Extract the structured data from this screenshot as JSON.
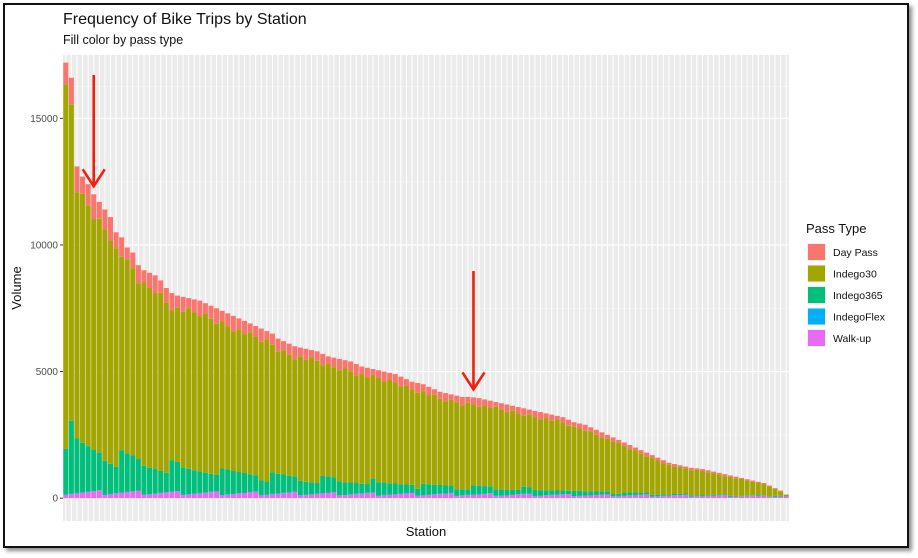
{
  "chart_data": {
    "type": "bar",
    "stacked": true,
    "title": "Frequency of Bike Trips by Station",
    "subtitle": "Fill color by pass type",
    "xlabel": "Station",
    "ylabel": "Volume",
    "ylim": [
      0,
      17500
    ],
    "yticks": [
      0,
      5000,
      10000,
      15000
    ],
    "grid": true,
    "legend": {
      "title": "Pass Type",
      "placement": "right",
      "entries": [
        "Day Pass",
        "Indego30",
        "Indego365",
        "IndegoFlex",
        "Walk-up"
      ]
    },
    "colors": {
      "Day Pass": "#F8766D",
      "Indego30": "#A3A500",
      "Indego365": "#00BF7D",
      "IndegoFlex": "#00B0F6",
      "Walk-up": "#E76BF3"
    },
    "stations_count": 130,
    "totals": [
      17200,
      16600,
      13100,
      12700,
      12400,
      12000,
      11700,
      11400,
      11100,
      10500,
      10300,
      9900,
      9700,
      9200,
      9000,
      8900,
      8800,
      8600,
      8300,
      8100,
      8000,
      7950,
      7900,
      7850,
      7800,
      7700,
      7600,
      7500,
      7400,
      7300,
      7200,
      7100,
      7000,
      6900,
      6800,
      6700,
      6600,
      6500,
      6300,
      6200,
      6100,
      6000,
      5950,
      5900,
      5850,
      5800,
      5700,
      5600,
      5550,
      5500,
      5450,
      5400,
      5300,
      5200,
      5150,
      5100,
      5050,
      5000,
      4950,
      4900,
      4800,
      4700,
      4600,
      4550,
      4500,
      4400,
      4300,
      4200,
      4150,
      4100,
      4050,
      4000,
      4000,
      3980,
      3950,
      3900,
      3850,
      3800,
      3750,
      3700,
      3650,
      3600,
      3550,
      3500,
      3450,
      3400,
      3350,
      3300,
      3250,
      3200,
      3100,
      3000,
      2950,
      2900,
      2800,
      2700,
      2600,
      2500,
      2400,
      2300,
      2200,
      2100,
      2000,
      1900,
      1800,
      1700,
      1600,
      1500,
      1400,
      1350,
      1300,
      1250,
      1200,
      1180,
      1150,
      1100,
      1050,
      1000,
      950,
      900,
      850,
      800,
      750,
      700,
      650,
      600,
      500,
      400,
      300,
      150
    ],
    "annotations": [
      {
        "type": "arrow",
        "label": "",
        "station_index": 5
      },
      {
        "type": "arrow",
        "label": "",
        "station_index": 73
      }
    ]
  }
}
